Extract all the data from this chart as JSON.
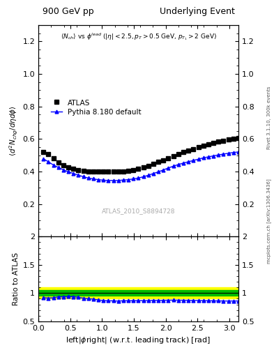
{
  "title_left": "900 GeV pp",
  "title_right": "Underlying Event",
  "annotation": "ATLAS_2010_S8894728",
  "subplot_title_text": "$\\langle N_{ch}\\rangle$ vs $\\phi^{lead}$ ($|\\eta| < 2.5, p_T > 0.5$ GeV, $p_{T_1} > 2$ GeV)",
  "ylabel_main": "$\\langle d^2 N_{chg}/d\\eta d\\phi\\rangle$",
  "ylabel_ratio": "Ratio to ATLAS",
  "xlabel": "left|$\\phi$right| (w.r.t. leading track) [rad]",
  "right_label": "Rivet 3.1.10, 300k events",
  "right_label2": "mcplots.cern.ch [arXiv:1306.3436]",
  "ylim_main": [
    0.0,
    1.3
  ],
  "ylim_ratio": [
    0.5,
    2.0
  ],
  "yticks_main": [
    0.2,
    0.4,
    0.6,
    0.8,
    1.0,
    1.2
  ],
  "xlim": [
    0,
    3.14159
  ],
  "green_band": [
    0.95,
    1.05
  ],
  "yellow_band": [
    0.9,
    1.1
  ],
  "atlas_x": [
    0.0785,
    0.1571,
    0.2356,
    0.3142,
    0.3927,
    0.4712,
    0.5498,
    0.6283,
    0.7069,
    0.7854,
    0.8639,
    0.9425,
    1.021,
    1.0996,
    1.1781,
    1.2566,
    1.3352,
    1.4137,
    1.4923,
    1.5708,
    1.6493,
    1.7279,
    1.8064,
    1.885,
    1.9635,
    2.042,
    2.1206,
    2.1991,
    2.2777,
    2.3562,
    2.4347,
    2.5133,
    2.5918,
    2.6704,
    2.7489,
    2.8274,
    2.906,
    2.9845,
    3.063,
    3.1416
  ],
  "atlas_y": [
    0.52,
    0.505,
    0.48,
    0.455,
    0.44,
    0.425,
    0.415,
    0.408,
    0.405,
    0.4,
    0.398,
    0.398,
    0.4,
    0.4,
    0.4,
    0.402,
    0.402,
    0.405,
    0.41,
    0.415,
    0.425,
    0.435,
    0.445,
    0.458,
    0.47,
    0.483,
    0.495,
    0.507,
    0.518,
    0.528,
    0.538,
    0.548,
    0.558,
    0.567,
    0.575,
    0.583,
    0.59,
    0.596,
    0.601,
    0.605
  ],
  "pythia_x": [
    0.0785,
    0.1571,
    0.2356,
    0.3142,
    0.3927,
    0.4712,
    0.5498,
    0.6283,
    0.7069,
    0.7854,
    0.8639,
    0.9425,
    1.021,
    1.0996,
    1.1781,
    1.2566,
    1.3352,
    1.4137,
    1.4923,
    1.5708,
    1.6493,
    1.7279,
    1.8064,
    1.885,
    1.9635,
    2.042,
    2.1206,
    2.1991,
    2.2777,
    2.3562,
    2.4347,
    2.5133,
    2.5918,
    2.6704,
    2.7489,
    2.8274,
    2.906,
    2.9845,
    3.063,
    3.1416
  ],
  "pythia_y": [
    0.478,
    0.46,
    0.44,
    0.425,
    0.41,
    0.398,
    0.388,
    0.378,
    0.368,
    0.36,
    0.355,
    0.35,
    0.347,
    0.345,
    0.345,
    0.345,
    0.348,
    0.35,
    0.355,
    0.36,
    0.368,
    0.377,
    0.388,
    0.398,
    0.41,
    0.422,
    0.433,
    0.443,
    0.452,
    0.46,
    0.468,
    0.476,
    0.484,
    0.49,
    0.496,
    0.502,
    0.507,
    0.512,
    0.517,
    0.52
  ],
  "ratio_y": [
    0.919,
    0.911,
    0.917,
    0.934,
    0.932,
    0.937,
    0.935,
    0.926,
    0.909,
    0.9,
    0.892,
    0.879,
    0.868,
    0.863,
    0.863,
    0.858,
    0.865,
    0.864,
    0.866,
    0.867,
    0.866,
    0.867,
    0.872,
    0.87,
    0.872,
    0.874,
    0.875,
    0.874,
    0.873,
    0.872,
    0.87,
    0.869,
    0.867,
    0.865,
    0.863,
    0.862,
    0.86,
    0.859,
    0.86,
    0.86
  ],
  "atlas_color": "black",
  "pythia_color": "blue",
  "legend_atlas": "ATLAS",
  "legend_pythia": "Pythia 8.180 default",
  "green_color": "#00bb00",
  "yellow_color": "#ffff00"
}
